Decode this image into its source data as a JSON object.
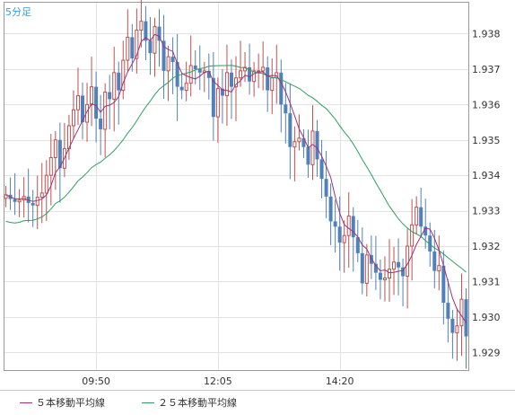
{
  "header": {
    "period_label": "5分足"
  },
  "legend": {
    "ma5_label": "５本移動平均線",
    "ma25_label": "２５本移動平均線"
  },
  "colors": {
    "up_candle": "#c0504d",
    "down_candle": "#4f81bd",
    "ma5": "#a0327a",
    "ma25": "#2e9e5e",
    "grid": "#e2e2e2",
    "frame": "#9a9a9a",
    "period_label": "#3a9fd8"
  },
  "chart_data": {
    "type": "candlestick",
    "x_tick_labels": [
      "09:50",
      "12:05",
      "14:20"
    ],
    "x_tick_indices": [
      20,
      47,
      74
    ],
    "y_ticks": [
      1.929,
      1.93,
      1.931,
      1.932,
      1.933,
      1.934,
      1.935,
      1.936,
      1.937,
      1.938
    ],
    "y_tick_labels": [
      "1.929",
      "1.930",
      "1.931",
      "1.932",
      "1.933",
      "1.934",
      "1.935",
      "1.936",
      "1.937",
      "1.938"
    ],
    "ylim": [
      1.9285,
      1.9389
    ],
    "candles_count": 103,
    "close": [
      1.93345,
      1.93333,
      1.93325,
      1.9333,
      1.9334,
      1.93322,
      1.93315,
      1.93338,
      1.9335,
      1.934,
      1.9345,
      1.935,
      1.9342,
      1.93475,
      1.9354,
      1.93585,
      1.93625,
      1.9355,
      1.936,
      1.9365,
      1.9356,
      1.9353,
      1.93635,
      1.93615,
      1.9369,
      1.9364,
      1.93725,
      1.9379,
      1.9373,
      1.9381,
      1.93835,
      1.9378,
      1.93745,
      1.9382,
      1.9378,
      1.93695,
      1.93735,
      1.9372,
      1.9365,
      1.9364,
      1.9366,
      1.9371,
      1.937,
      1.9369,
      1.93695,
      1.93675,
      1.93565,
      1.93645,
      1.93625,
      1.9369,
      1.9365,
      1.93675,
      1.93695,
      1.93705,
      1.93665,
      1.93695,
      1.93695,
      1.93705,
      1.9364,
      1.93675,
      1.9369,
      1.936,
      1.93575,
      1.9348,
      1.93495,
      1.93505,
      1.9348,
      1.9343,
      1.93525,
      1.93445,
      1.9339,
      1.9334,
      1.9327,
      1.93255,
      1.9321,
      1.9323,
      1.93285,
      1.93225,
      1.9318,
      1.93095,
      1.93175,
      1.9315,
      1.93125,
      1.93105,
      1.9311,
      1.93135,
      1.93155,
      1.9314,
      1.93115,
      1.932,
      1.9326,
      1.9331,
      1.93255,
      1.9323,
      1.93185,
      1.9313,
      1.93145,
      1.9304,
      1.92995,
      1.92955,
      1.92975,
      1.9305,
      1.92945
    ],
    "series": [
      {
        "name": "５本移動平均線",
        "kind": "sma",
        "period": 5
      },
      {
        "name": "２５本移動平均線",
        "kind": "sma",
        "period": 25
      }
    ],
    "grid": true,
    "y_axis_position": "right",
    "legend_position": "bottom-left"
  }
}
